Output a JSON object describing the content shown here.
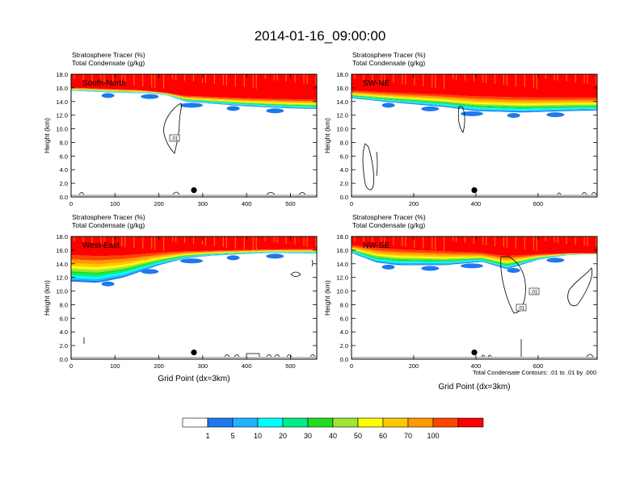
{
  "figure": {
    "title": "2014-01-16_09:00:00",
    "footnote": "Total Condensate Contours: .01 to .01 by .000"
  },
  "colors": {
    "levels": [
      "#ffffff",
      "#1e78f0",
      "#1eb4ff",
      "#00ffff",
      "#00ee88",
      "#22dd22",
      "#a0e632",
      "#ffff00",
      "#ffc800",
      "#ff9900",
      "#ff4400",
      "#ff0000"
    ]
  },
  "colorbar": {
    "labels": [
      "1",
      "5",
      "10",
      "20",
      "30",
      "40",
      "50",
      "60",
      "70",
      "100"
    ]
  },
  "chart_data": [
    {
      "type": "heatmap",
      "title_line1": "Stratosphere Tracer   (%)",
      "title_line2": "Total Condensate   (g/kg)",
      "panel_label": "South-North",
      "ylabel": "Height (km)",
      "xlabel": "",
      "xlim": [
        0,
        560
      ],
      "ylim": [
        0,
        18
      ],
      "xticks": [
        0,
        100,
        200,
        300,
        400,
        500
      ],
      "yticks": [
        "0.0",
        "2.0",
        "4.0",
        "6.0",
        "8.0",
        "10.0",
        "12.0",
        "14.0",
        "16.0",
        "18.0"
      ],
      "top_boundary": [
        [
          0,
          16.2
        ],
        [
          150,
          15.9
        ],
        [
          250,
          15.2
        ],
        [
          350,
          15.0
        ],
        [
          450,
          14.9
        ],
        [
          560,
          14.8
        ]
      ],
      "bottom_boundary": [
        [
          0,
          15.6
        ],
        [
          100,
          15.3
        ],
        [
          180,
          15.2
        ],
        [
          220,
          14.9
        ],
        [
          260,
          14.0
        ],
        [
          300,
          13.8
        ],
        [
          400,
          13.3
        ],
        [
          500,
          13.0
        ],
        [
          560,
          12.9
        ]
      ],
      "contour_label": ".01",
      "marker_x": 280,
      "marker_y": 1.0
    },
    {
      "type": "heatmap",
      "title_line1": "Stratosphere Tracer   (%)",
      "title_line2": "Total Condensate   (g/kg)",
      "panel_label": "SW-NE",
      "ylabel": "Height (km)",
      "xlabel": "",
      "xlim": [
        0,
        790
      ],
      "ylim": [
        0,
        18
      ],
      "xticks": [
        0,
        200,
        400,
        600
      ],
      "yticks": [
        "0.0",
        "2.0",
        "4.0",
        "6.0",
        "8.0",
        "10.0",
        "12.0",
        "14.0",
        "16.0",
        "18.0"
      ],
      "top_boundary": [
        [
          0,
          16.0
        ],
        [
          200,
          15.8
        ],
        [
          400,
          15.6
        ],
        [
          600,
          15.4
        ],
        [
          790,
          15.3
        ]
      ],
      "bottom_boundary": [
        [
          0,
          14.5
        ],
        [
          100,
          14.0
        ],
        [
          300,
          13.2
        ],
        [
          400,
          12.6
        ],
        [
          550,
          12.4
        ],
        [
          700,
          12.6
        ],
        [
          790,
          12.7
        ]
      ],
      "contour_label": "",
      "marker_x": 395,
      "marker_y": 1.0
    },
    {
      "type": "heatmap",
      "title_line1": "Stratosphere Tracer   (%)",
      "title_line2": "Total Condensate   (g/kg)",
      "panel_label": "West-East",
      "ylabel": "Height (km)",
      "xlabel": "Grid Point (dx=3km)",
      "xlim": [
        0,
        560
      ],
      "ylim": [
        0,
        18
      ],
      "xticks": [
        0,
        100,
        200,
        300,
        400,
        500
      ],
      "yticks": [
        "0.0",
        "2.0",
        "4.0",
        "6.0",
        "8.0",
        "10.0",
        "12.0",
        "14.0",
        "16.0",
        "18.0"
      ],
      "top_boundary": [
        [
          0,
          16.8
        ],
        [
          150,
          16.4
        ],
        [
          300,
          16.2
        ],
        [
          450,
          16.3
        ],
        [
          560,
          16.4
        ]
      ],
      "bottom_boundary": [
        [
          0,
          11.4
        ],
        [
          60,
          11.2
        ],
        [
          120,
          12.0
        ],
        [
          200,
          13.8
        ],
        [
          260,
          14.8
        ],
        [
          320,
          15.2
        ],
        [
          450,
          15.6
        ],
        [
          560,
          15.5
        ]
      ],
      "contour_label": "",
      "marker_x": 280,
      "marker_y": 1.0
    },
    {
      "type": "heatmap",
      "title_line1": "Stratosphere Tracer   (%)",
      "title_line2": "Total Condensate   (g/kg)",
      "panel_label": "NW-SE",
      "ylabel": "Height (km)",
      "xlabel": "Grid Point (dx=3km)",
      "xlim": [
        0,
        790
      ],
      "ylim": [
        0,
        18
      ],
      "xticks": [
        0,
        200,
        400,
        600
      ],
      "yticks": [
        "0.0",
        "2.0",
        "4.0",
        "6.0",
        "8.0",
        "10.0",
        "12.0",
        "14.0",
        "16.0",
        "18.0"
      ],
      "top_boundary": [
        [
          0,
          17.2
        ],
        [
          150,
          17.0
        ],
        [
          300,
          16.6
        ],
        [
          450,
          16.0
        ],
        [
          600,
          15.7
        ],
        [
          790,
          15.6
        ]
      ],
      "bottom_boundary": [
        [
          0,
          15.6
        ],
        [
          80,
          14.2
        ],
        [
          150,
          13.8
        ],
        [
          300,
          13.8
        ],
        [
          420,
          14.3
        ],
        [
          500,
          13.2
        ],
        [
          600,
          14.6
        ],
        [
          700,
          15.3
        ],
        [
          790,
          15.4
        ]
      ],
      "contour_label": ".01",
      "marker_x": 395,
      "marker_y": 1.0
    }
  ]
}
